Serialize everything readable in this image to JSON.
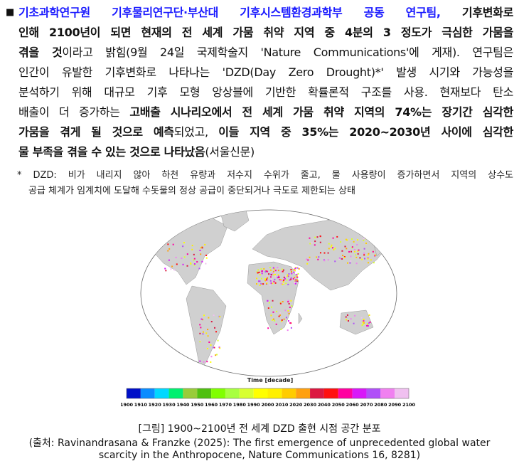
{
  "body": {
    "bullet": "■",
    "lines": [
      [
        {
          "t": "기초과학연구원 기후물리연구단·부산대 기후시스템환경과학부 공동 연구팀,",
          "s": "blue"
        },
        {
          "t": " 기후변화로",
          "s": "b"
        }
      ],
      [
        {
          "t": "인해 2100년이 되면 현재의 전 세계 가뭄 취약 지역 중 4분의 3 정도가 극심한 가뭄을",
          "s": "b"
        }
      ],
      [
        {
          "t": "겪을 것",
          "s": "b"
        },
        {
          "t": "이라고 밝힘(9월 24일 국제학술지 'Nature Communications'에 게재). 연구팀은",
          "s": ""
        }
      ],
      [
        {
          "t": "인간이 유발한 기후변화로 나타나는 'DZD(Day Zero Drought)*' 발생 시기와 가능성을",
          "s": ""
        }
      ],
      [
        {
          "t": "분석하기 위해 대규모 기후 모형 앙상블에 기반한 확률론적 구조를 사용. 현재보다 탄소",
          "s": ""
        }
      ],
      [
        {
          "t": "배출이 더 증가하는 ",
          "s": ""
        },
        {
          "t": "고배출 시나리오에서 전 세계 가뭄 취약 지역의 74%는 장기간 심각한",
          "s": "b"
        }
      ],
      [
        {
          "t": "가뭄을 겪게 될 것으로 예측",
          "s": "b"
        },
        {
          "t": "되었고, ",
          "s": ""
        },
        {
          "t": "이들 지역 중 35%는 2020~2030년 사이에 심각한",
          "s": "b"
        }
      ],
      [
        {
          "t": "물 부족을 겪을 수 있는 것으로 나타났음",
          "s": "b"
        },
        {
          "t": "(서울신문)",
          "s": ""
        }
      ]
    ]
  },
  "footnote": {
    "line1": "*  DZD: 비가 내리지 않아 하천 유량과 저수지 수위가 줄고, 물 사용량이 증가하면서 지역의 상수도",
    "line2": "공급 체계가 임계치에 도달해 수돗물의 정상 공급이 중단되거나 극도로 제한되는 상태"
  },
  "figure": {
    "colorbar_title": "Time [decade]",
    "ticks": [
      "1900",
      "1910",
      "1920",
      "1930",
      "1940",
      "1950",
      "1960",
      "1970",
      "1980",
      "1990",
      "2000",
      "2010",
      "2020",
      "2030",
      "2040",
      "2050",
      "2060",
      "2070",
      "2080",
      "2090",
      "2100"
    ],
    "colors": [
      "#0010c8",
      "#0a8cff",
      "#00d8ff",
      "#00f070",
      "#98cc3a",
      "#50c010",
      "#80ff00",
      "#a8ff40",
      "#d8ff30",
      "#ffff00",
      "#fff000",
      "#ffcc00",
      "#ffa010",
      "#dc1840",
      "#ff1010",
      "#ff00a0",
      "#d818f8",
      "#b050f8",
      "#f080f0",
      "#f0c0f0"
    ],
    "land_color": "#d0d0d0"
  },
  "caption": {
    "title": "[그림] 1900~2100년 전 세계 DZD 출현 시점 공간 분포",
    "source1": "(출처: Ravinandrasana & Franzke (2025): The first emergence of unprecedented global water",
    "source2": "scarcity in the Anthropocene, Nature Communications 16, 8281)"
  }
}
